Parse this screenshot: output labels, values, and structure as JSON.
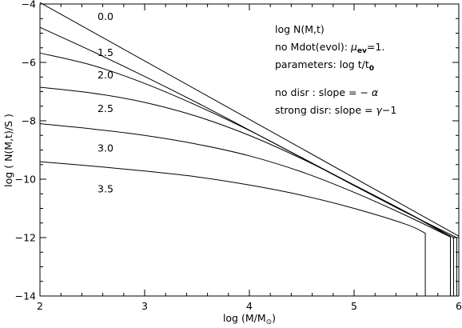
{
  "chart_data": {
    "type": "line",
    "xlabel_main": "log (M/M",
    "xlabel_sym": "⊙",
    "xlabel_end": ")",
    "ylabel": "log ( N(M,t)/S )",
    "xlim": [
      2,
      6
    ],
    "ylim": [
      -14,
      -4
    ],
    "xticks": [
      2,
      3,
      4,
      5,
      6
    ],
    "yticks": [
      -14,
      -12,
      -10,
      -8,
      -6,
      -4
    ],
    "xtick_labels": [
      "2",
      "3",
      "4",
      "5",
      "6"
    ],
    "ytick_labels": [
      "−14",
      "−12",
      "−10",
      "−8",
      "−6",
      "−4"
    ],
    "grid": false,
    "series": [
      {
        "name": "0.0",
        "x": [
          2.0,
          6.0
        ],
        "y": [
          -3.95,
          -11.95
        ],
        "cutoff_x": null
      },
      {
        "name": "1.5",
        "x": [
          2.0,
          2.5,
          3.0,
          3.5,
          4.0,
          4.5,
          5.0,
          5.5,
          5.98
        ],
        "y": [
          -4.8,
          -5.62,
          -6.48,
          -7.38,
          -8.32,
          -9.27,
          -10.22,
          -11.15,
          -12.0
        ],
        "cutoff_x": 5.98
      },
      {
        "name": "2.0",
        "x": [
          2.0,
          2.5,
          3.0,
          3.5,
          4.0,
          4.5,
          5.0,
          5.5,
          5.95
        ],
        "y": [
          -5.68,
          -6.1,
          -6.72,
          -7.48,
          -8.33,
          -9.26,
          -10.2,
          -11.13,
          -12.0
        ],
        "cutoff_x": 5.95
      },
      {
        "name": "2.5",
        "x": [
          2.0,
          2.5,
          3.0,
          3.5,
          4.0,
          4.5,
          5.0,
          5.5,
          5.92
        ],
        "y": [
          -6.85,
          -7.05,
          -7.37,
          -7.85,
          -8.5,
          -9.3,
          -10.2,
          -11.13,
          -11.98
        ],
        "cutoff_x": 5.92
      },
      {
        "name": "3.0",
        "x": [
          2.0,
          2.5,
          3.0,
          3.5,
          4.0,
          4.5,
          5.0,
          5.5,
          5.92
        ],
        "y": [
          -8.1,
          -8.28,
          -8.5,
          -8.8,
          -9.2,
          -9.75,
          -10.45,
          -11.25,
          -11.98
        ],
        "cutoff_x": 5.92
      },
      {
        "name": "3.5",
        "x": [
          2.0,
          2.5,
          3.0,
          3.5,
          4.0,
          4.5,
          5.0,
          5.5,
          5.68
        ],
        "y": [
          -9.4,
          -9.55,
          -9.72,
          -9.92,
          -10.2,
          -10.55,
          -11.0,
          -11.55,
          -11.85
        ],
        "cutoff_x": 5.68
      }
    ],
    "curve_labels": [
      {
        "text": "0.0",
        "x": 2.55,
        "y": -4.55
      },
      {
        "text": "1.5",
        "x": 2.55,
        "y": -5.78
      },
      {
        "text": "2.0",
        "x": 2.55,
        "y": -6.55
      },
      {
        "text": "2.5",
        "x": 2.55,
        "y": -7.7
      },
      {
        "text": "3.0",
        "x": 2.55,
        "y": -9.05
      },
      {
        "text": "3.5",
        "x": 2.55,
        "y": -10.45
      }
    ],
    "annotations": {
      "line1": "log N(M,t)",
      "line2_pre": "no Mdot(evol):  ",
      "line2_mu": "μ",
      "line2_sub": "ev",
      "line2_post": "=1.",
      "line3_pre": "parameters: log t/t",
      "line3_sub": "0",
      "line4_pre": "no disr     : slope = − ",
      "line4_sym": "α",
      "line5_pre": "strong disr: slope = ",
      "line5_sym": "γ",
      "line5_post": "−1"
    }
  }
}
